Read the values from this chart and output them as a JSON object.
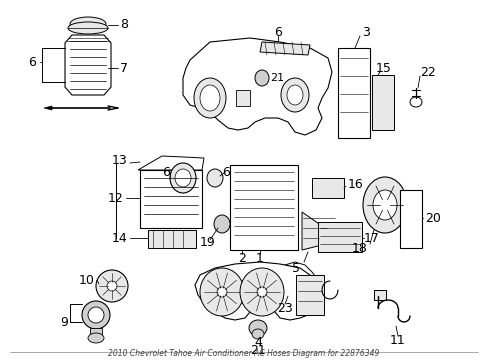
{
  "title": "2010 Chevrolet Tahoe Air Conditioner AC Hoses Diagram for 22876349",
  "bg": "#ffffff",
  "fw": 4.89,
  "fh": 3.6,
  "dpi": 100
}
